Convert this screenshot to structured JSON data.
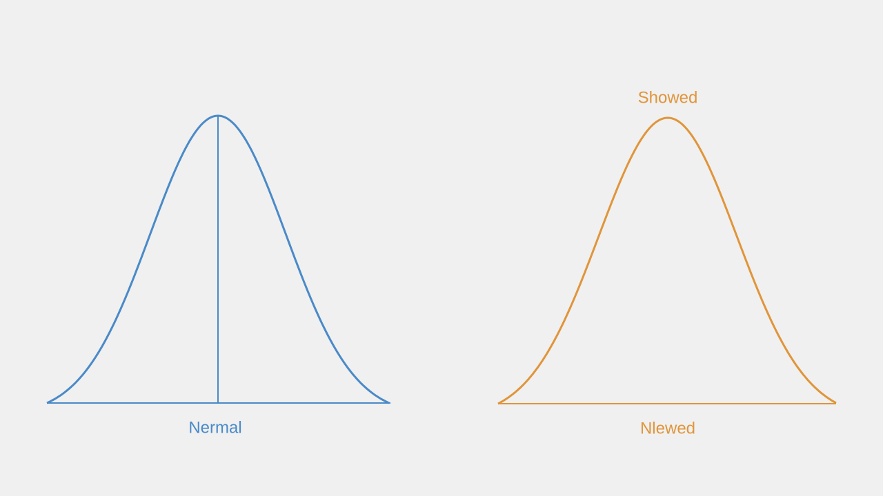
{
  "left": {
    "label": "Nermal"
  },
  "right": {
    "title": "Showed",
    "label": "Nlewed"
  }
}
